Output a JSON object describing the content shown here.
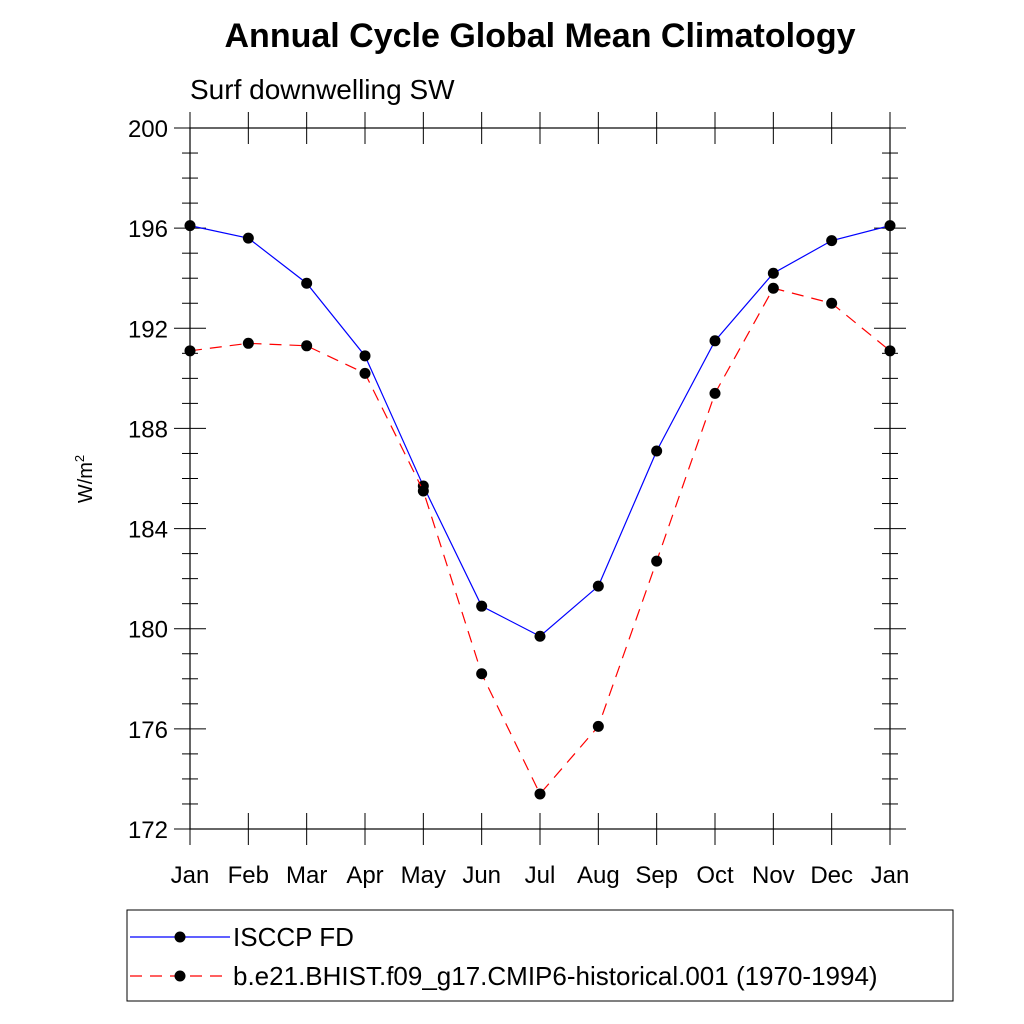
{
  "chart_data": {
    "type": "line",
    "title": "Annual Cycle Global Mean Climatology",
    "subtitle": "Surf downwelling SW",
    "ylabel": "W/m",
    "ylabel_superscript": "2",
    "categories": [
      "Jan",
      "Feb",
      "Mar",
      "Apr",
      "May",
      "Jun",
      "Jul",
      "Aug",
      "Sep",
      "Oct",
      "Nov",
      "Dec",
      "Jan"
    ],
    "ylim": [
      172,
      200
    ],
    "yticks": [
      172,
      176,
      180,
      184,
      188,
      192,
      196,
      200
    ],
    "grid": false,
    "legend_position": "bottom",
    "series": [
      {
        "name": "ISCCP FD",
        "color": "#0000ff",
        "line_style": "solid",
        "marker": "filled-circle",
        "values": [
          196.1,
          195.6,
          193.8,
          190.9,
          185.7,
          180.9,
          179.7,
          181.7,
          187.1,
          191.5,
          194.2,
          195.5,
          196.1
        ]
      },
      {
        "name": "b.e21.BHIST.f09_g17.CMIP6-historical.001 (1970-1994)",
        "color": "#ff0000",
        "line_style": "dashed",
        "marker": "filled-circle",
        "values": [
          191.1,
          191.4,
          191.3,
          190.2,
          185.5,
          178.2,
          173.4,
          176.1,
          182.7,
          189.4,
          193.6,
          193.0,
          191.1
        ]
      }
    ]
  }
}
